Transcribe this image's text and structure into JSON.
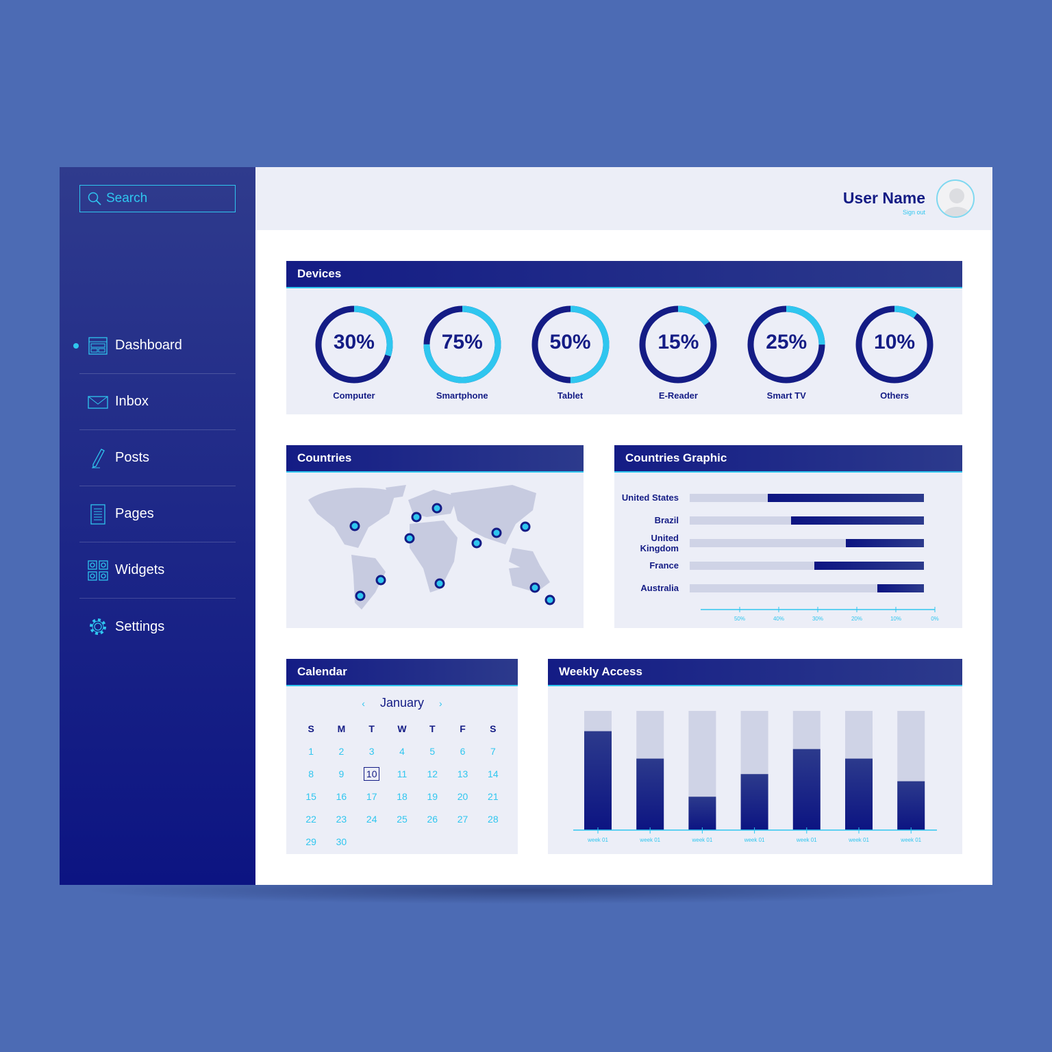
{
  "sidebar": {
    "search_placeholder": "Search",
    "items": [
      {
        "label": "Dashboard",
        "icon": "dashboard-icon",
        "active": true
      },
      {
        "label": "Inbox",
        "icon": "mail-icon"
      },
      {
        "label": "Posts",
        "icon": "pen-icon"
      },
      {
        "label": "Pages",
        "icon": "page-icon"
      },
      {
        "label": "Widgets",
        "icon": "widgets-icon"
      },
      {
        "label": "Settings",
        "icon": "gear-icon"
      }
    ]
  },
  "header": {
    "user_name": "User Name",
    "sign_out": "Sign out"
  },
  "colors": {
    "accent": "#2fc6ef",
    "primary": "#141c85",
    "background": "#4c6bb4",
    "track": "#cfd3e6"
  },
  "devices": {
    "title": "Devices",
    "items": [
      {
        "label": "Computer",
        "value": "30%",
        "pct": 30
      },
      {
        "label": "Smartphone",
        "value": "75%",
        "pct": 75
      },
      {
        "label": "Tablet",
        "value": "50%",
        "pct": 50
      },
      {
        "label": "E-Reader",
        "value": "15%",
        "pct": 15
      },
      {
        "label": "Smart TV",
        "value": "25%",
        "pct": 25
      },
      {
        "label": "Others",
        "value": "10%",
        "pct": 10
      }
    ]
  },
  "countries": {
    "title": "Countries"
  },
  "countries_graphic": {
    "title": "Countries Graphic",
    "rows": [
      {
        "name": "United States",
        "value": 40
      },
      {
        "name": "Brazil",
        "value": 34
      },
      {
        "name": "United Kingdom",
        "value": 20
      },
      {
        "name": "France",
        "value": 28
      },
      {
        "name": "Australia",
        "value": 12
      }
    ],
    "ticks": [
      "50%",
      "40%",
      "30%",
      "20%",
      "10%",
      "0%"
    ]
  },
  "calendar": {
    "title": "Calendar",
    "month": "January",
    "prev": "‹",
    "next": "›",
    "dow": [
      "S",
      "M",
      "T",
      "W",
      "T",
      "F",
      "S"
    ],
    "days": [
      "1",
      "2",
      "3",
      "4",
      "5",
      "6",
      "7",
      "8",
      "9",
      "10",
      "11",
      "12",
      "13",
      "14",
      "15",
      "16",
      "17",
      "18",
      "19",
      "20",
      "21",
      "22",
      "23",
      "24",
      "25",
      "26",
      "27",
      "28",
      "29",
      "30"
    ],
    "today": "10"
  },
  "weekly": {
    "title": "Weekly Access",
    "labels": [
      "week 01",
      "week 01",
      "week 01",
      "week 01",
      "week 01",
      "week 01",
      "week 01"
    ],
    "values": [
      83,
      60,
      28,
      47,
      68,
      60,
      41
    ]
  }
}
